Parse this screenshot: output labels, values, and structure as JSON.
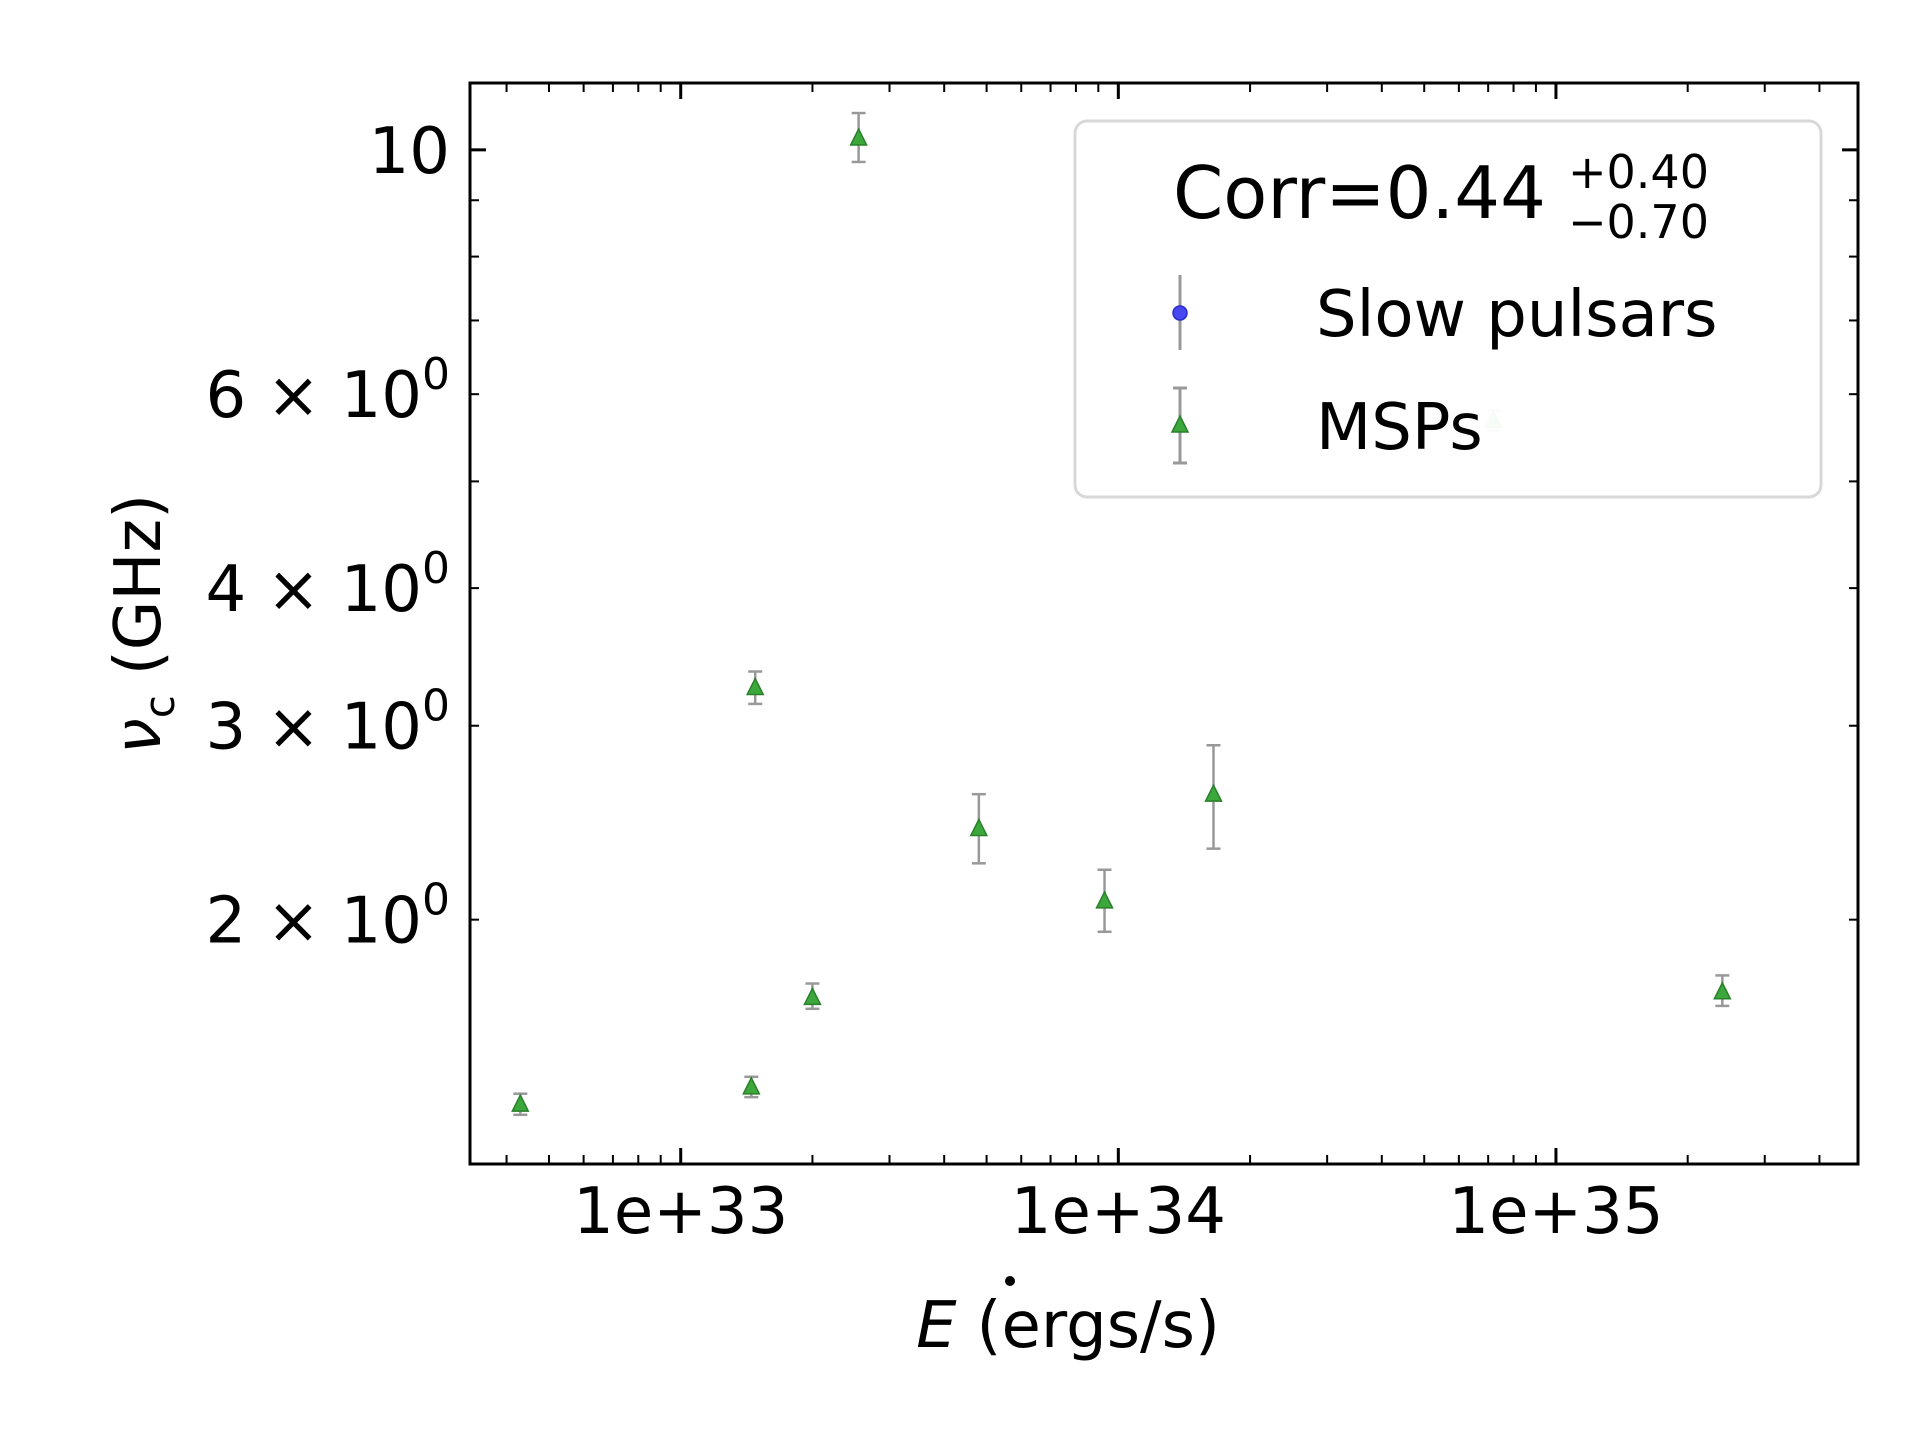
{
  "chart_data": {
    "type": "scatter",
    "x_scale": "log",
    "y_scale": "log",
    "xlim": [
      3.3e+32,
      4.9e+35
    ],
    "ylim": [
      1.2,
      11.5
    ],
    "xlabel": "(ergs/s)",
    "xlabel_symbol": "E",
    "ylabel": "(GHz)",
    "ylabel_symbol": "ν",
    "ylabel_subscript": "c",
    "x_ticks": [
      {
        "value": 1e+33,
        "label": "1e+33"
      },
      {
        "value": 1e+34,
        "label": "1e+34"
      },
      {
        "value": 1e+35,
        "label": "1e+35"
      }
    ],
    "y_ticks": [
      {
        "value": 10,
        "label": "10"
      },
      {
        "value": 6,
        "label": "6 × 10",
        "exp": "0"
      },
      {
        "value": 4,
        "label": "4 × 10",
        "exp": "0"
      },
      {
        "value": 3,
        "label": "3 × 10",
        "exp": "0"
      },
      {
        "value": 2,
        "label": "2 × 10",
        "exp": "0"
      }
    ],
    "legend": {
      "placement": "top-right",
      "title_main": "Corr=0.44",
      "title_sup": "+0.40",
      "title_sub": "−0.70"
    },
    "series": [
      {
        "name": "Slow pulsars",
        "marker": "circle",
        "color": "#3b3bea",
        "points": []
      },
      {
        "name": "MSPs",
        "marker": "triangle",
        "color": "#2ca02c",
        "points": [
          {
            "x": 4.3e+32,
            "y": 1.36,
            "lo": 1.33,
            "hi": 1.39
          },
          {
            "x": 1.45e+33,
            "y": 1.41,
            "lo": 1.38,
            "hi": 1.44
          },
          {
            "x": 1.48e+33,
            "y": 3.25,
            "lo": 3.14,
            "hi": 3.36
          },
          {
            "x": 2e+33,
            "y": 1.7,
            "lo": 1.66,
            "hi": 1.75
          },
          {
            "x": 2.55e+33,
            "y": 10.25,
            "lo": 9.75,
            "hi": 10.8
          },
          {
            "x": 4.8e+33,
            "y": 2.42,
            "lo": 2.25,
            "hi": 2.6
          },
          {
            "x": 9.3e+33,
            "y": 2.08,
            "lo": 1.95,
            "hi": 2.22
          },
          {
            "x": 1.65e+34,
            "y": 2.6,
            "lo": 2.32,
            "hi": 2.88
          },
          {
            "x": 7.2e+34,
            "y": 5.68,
            "lo": 5.56,
            "hi": 5.8,
            "faded": true
          },
          {
            "x": 2.4e+35,
            "y": 1.72,
            "lo": 1.67,
            "hi": 1.78
          }
        ]
      }
    ]
  }
}
